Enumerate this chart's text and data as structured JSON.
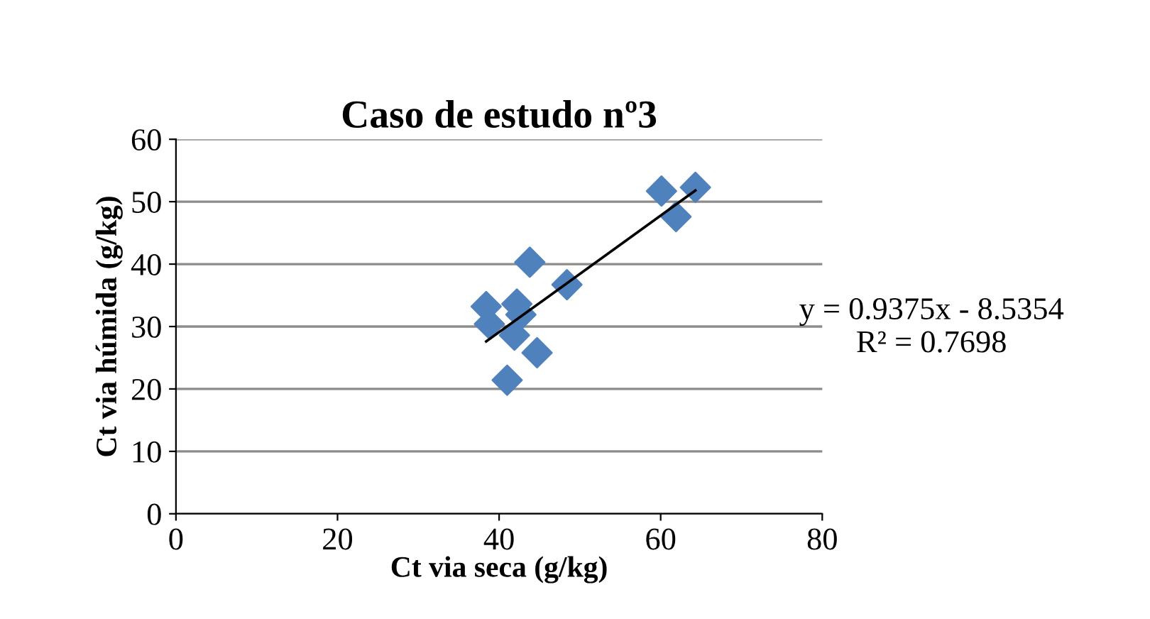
{
  "chart_data": {
    "type": "scatter",
    "title": "Caso de estudo nº3",
    "xlabel": "Ct via seca (g/kg)",
    "ylabel": "Ct via húmida (g/kg)",
    "xlim": [
      0,
      80
    ],
    "xticks": [
      0,
      20,
      40,
      60,
      80
    ],
    "ylim": [
      0,
      60
    ],
    "yticks": [
      0,
      10,
      20,
      30,
      40,
      50,
      60
    ],
    "grid": "y",
    "series": [
      {
        "marker": "diamond",
        "color": "#4f81bd",
        "x": [
          60.1,
          64.3,
          61.9,
          43.8,
          48.4,
          38.4,
          42.2,
          42.7,
          38.8,
          41.9,
          44.7,
          41.0
        ],
        "values": [
          51.7,
          52.3,
          47.6,
          40.3,
          36.7,
          33.2,
          33.6,
          31.9,
          30.4,
          28.6,
          25.8,
          21.4
        ]
      },
      {
        "type": "line",
        "color": "#000000",
        "x": [
          38.4,
          64.3
        ],
        "values": [
          27.6,
          51.8
        ]
      }
    ],
    "annotations": [
      "y = 0.9375x - 8.5354\nR² = 0.7698"
    ]
  }
}
